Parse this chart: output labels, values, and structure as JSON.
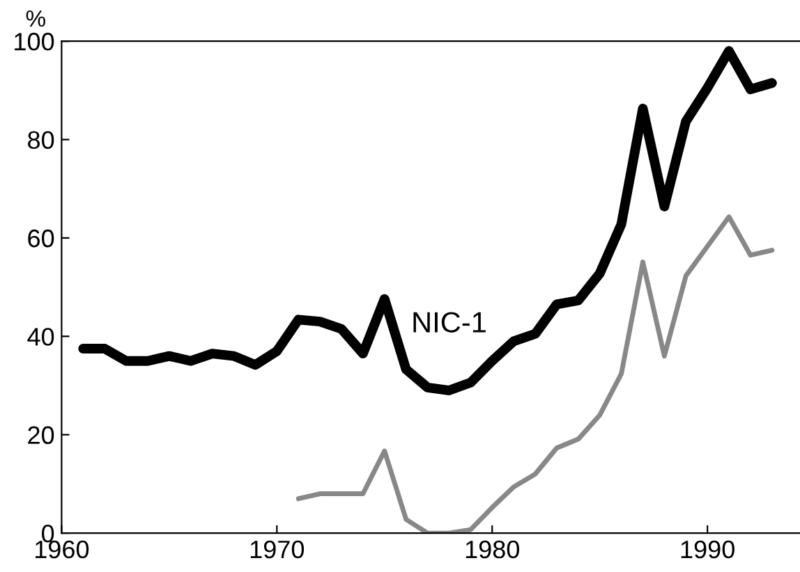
{
  "chart_data": {
    "type": "line",
    "ylabel": "%",
    "xlim": [
      1960,
      1994.3
    ],
    "xticks": [
      1960,
      1970,
      1980,
      1990
    ],
    "ylim": [
      0,
      100
    ],
    "yticks": [
      0,
      20,
      40,
      60,
      80,
      100
    ],
    "grid": false,
    "legend": false,
    "marker": "none",
    "line_style": "solid",
    "series": [
      {
        "name": "NIC-1",
        "color": "#000000",
        "x": [
          1961,
          1962,
          1963,
          1964,
          1965,
          1966,
          1967,
          1968,
          1969,
          1970,
          1971,
          1972,
          1973,
          1974,
          1975,
          1976,
          1977,
          1978,
          1979,
          1980,
          1981,
          1982,
          1983,
          1984,
          1985,
          1986,
          1987,
          1988,
          1989,
          1990,
          1991,
          1992,
          1993
        ],
        "values": [
          37.5,
          37.5,
          35,
          35,
          36,
          35,
          36.5,
          36,
          34.2,
          37,
          43.4,
          43,
          41.5,
          36.5,
          47.6,
          33.3,
          29.6,
          29,
          30.6,
          35,
          39,
          40.5,
          46.5,
          47.3,
          52.8,
          62.8,
          86.3,
          66.4,
          83.7,
          90.5,
          98,
          90.2,
          91.5
        ]
      },
      {
        "color": "#888888",
        "x": [
          1971,
          1972,
          1973,
          1974,
          1975,
          1976,
          1977,
          1978,
          1979,
          1980,
          1981,
          1982,
          1983,
          1984,
          1985,
          1986,
          1987,
          1988,
          1989,
          1990,
          1991,
          1992,
          1993
        ],
        "values": [
          7,
          8,
          8,
          8,
          16.7,
          2.8,
          0,
          0,
          0.7,
          5.2,
          9.4,
          12,
          17.3,
          19.1,
          24,
          32.4,
          55.1,
          36,
          52.3,
          58.3,
          64.3,
          56.5,
          57.5
        ]
      }
    ]
  }
}
